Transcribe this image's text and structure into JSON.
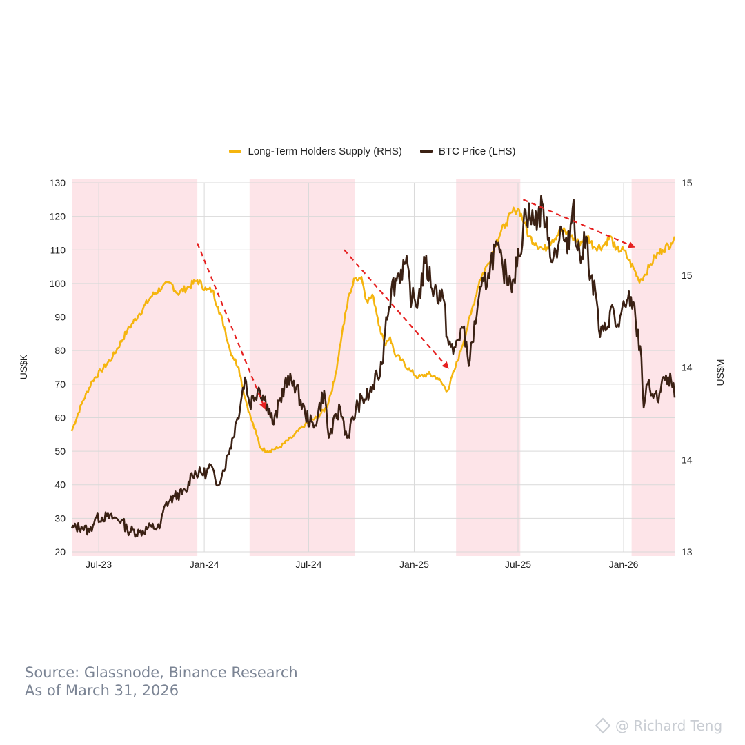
{
  "legend": {
    "lth_label": "Long-Term Holders Supply (RHS)",
    "btc_label": "BTC Price (LHS)"
  },
  "footer": {
    "source": "Source: Glassnode, Binance Research",
    "as_of": "As of March 31, 2026"
  },
  "watermark": {
    "text": "@ Richard Teng"
  },
  "colors": {
    "lth": "#f5b50f",
    "btc": "#3b2114",
    "shade": "#fde4e8",
    "arrow": "#e62020",
    "grid": "#d9d9d9"
  },
  "chart_data": {
    "type": "line",
    "x_range": [
      "2023-05-15",
      "2026-03-31"
    ],
    "x_ticks": [
      "Jul-23",
      "Jan-24",
      "Jul-24",
      "Jan-25",
      "Jul-25",
      "Jan-26"
    ],
    "x_tick_dates": [
      "2023-07-01",
      "2024-01-01",
      "2024-07-01",
      "2025-01-01",
      "2025-07-01",
      "2026-01-01"
    ],
    "ylabel_left": "US$K",
    "ylim_left": [
      20,
      130
    ],
    "yticks_left": [
      20,
      30,
      40,
      50,
      60,
      70,
      80,
      90,
      100,
      110,
      120,
      130
    ],
    "ylabel_right": "US$M",
    "ylim_right": [
      13,
      15
    ],
    "ytick_labels_right": [
      "15",
      "15",
      "14",
      "14",
      "13"
    ],
    "grid": true,
    "legend_position": "top-center",
    "shaded_periods": [
      [
        "2023-05-15",
        "2023-12-20"
      ],
      [
        "2024-03-20",
        "2024-09-20"
      ],
      [
        "2025-03-15",
        "2025-07-05"
      ],
      [
        "2026-01-15",
        "2026-03-31"
      ]
    ],
    "trend_arrows": [
      {
        "from": [
          "2023-12-20",
          112
        ],
        "to": [
          "2024-04-15",
          63
        ]
      },
      {
        "from": [
          "2024-09-01",
          110
        ],
        "to": [
          "2025-02-28",
          75
        ]
      },
      {
        "from": [
          "2025-07-10",
          125
        ],
        "to": [
          "2026-01-18",
          111
        ]
      }
    ],
    "series": [
      {
        "name": "BTC Price (LHS)",
        "axis": "left",
        "points": [
          [
            "2023-05-15",
            27
          ],
          [
            "2023-06-01",
            27.5
          ],
          [
            "2023-06-15",
            26
          ],
          [
            "2023-06-25",
            30
          ],
          [
            "2023-07-15",
            30.5
          ],
          [
            "2023-08-10",
            29.5
          ],
          [
            "2023-08-20",
            26.5
          ],
          [
            "2023-09-10",
            25.8
          ],
          [
            "2023-10-01",
            27.5
          ],
          [
            "2023-10-15",
            27
          ],
          [
            "2023-10-25",
            34
          ],
          [
            "2023-11-10",
            36.5
          ],
          [
            "2023-12-01",
            38
          ],
          [
            "2023-12-10",
            43.5
          ],
          [
            "2024-01-05",
            43.5
          ],
          [
            "2024-01-12",
            46
          ],
          [
            "2024-01-22",
            40
          ],
          [
            "2024-02-01",
            43
          ],
          [
            "2024-02-15",
            51
          ],
          [
            "2024-02-28",
            60
          ],
          [
            "2024-03-12",
            72
          ],
          [
            "2024-03-20",
            64
          ],
          [
            "2024-04-05",
            69
          ],
          [
            "2024-04-20",
            64
          ],
          [
            "2024-05-01",
            58
          ],
          [
            "2024-05-20",
            70
          ],
          [
            "2024-06-05",
            71
          ],
          [
            "2024-06-25",
            61
          ],
          [
            "2024-07-10",
            57
          ],
          [
            "2024-07-28",
            68
          ],
          [
            "2024-08-05",
            54
          ],
          [
            "2024-08-25",
            63
          ],
          [
            "2024-09-06",
            54
          ],
          [
            "2024-09-25",
            64
          ],
          [
            "2024-10-15",
            67
          ],
          [
            "2024-10-29",
            72
          ],
          [
            "2024-11-06",
            76
          ],
          [
            "2024-11-13",
            90
          ],
          [
            "2024-11-22",
            98
          ],
          [
            "2024-12-05",
            103
          ],
          [
            "2024-12-17",
            106
          ],
          [
            "2024-12-28",
            95
          ],
          [
            "2025-01-08",
            95
          ],
          [
            "2025-01-20",
            106
          ],
          [
            "2025-02-05",
            98
          ],
          [
            "2025-02-20",
            96
          ],
          [
            "2025-02-28",
            84
          ],
          [
            "2025-03-10",
            79
          ],
          [
            "2025-03-25",
            87
          ],
          [
            "2025-04-08",
            77
          ],
          [
            "2025-04-22",
            94
          ],
          [
            "2025-05-10",
            103
          ],
          [
            "2025-05-22",
            111
          ],
          [
            "2025-06-05",
            104
          ],
          [
            "2025-06-22",
            101
          ],
          [
            "2025-07-03",
            108
          ],
          [
            "2025-07-14",
            122
          ],
          [
            "2025-07-28",
            118
          ],
          [
            "2025-08-14",
            123
          ],
          [
            "2025-08-22",
            113
          ],
          [
            "2025-09-01",
            108
          ],
          [
            "2025-09-15",
            116
          ],
          [
            "2025-09-25",
            109
          ],
          [
            "2025-10-06",
            125
          ],
          [
            "2025-10-11",
            111
          ],
          [
            "2025-10-20",
            108
          ],
          [
            "2025-10-28",
            114
          ],
          [
            "2025-11-05",
            102
          ],
          [
            "2025-11-15",
            95
          ],
          [
            "2025-11-21",
            84
          ],
          [
            "2025-12-01",
            86
          ],
          [
            "2025-12-10",
            93
          ],
          [
            "2025-12-20",
            87
          ],
          [
            "2026-01-05",
            93
          ],
          [
            "2026-01-14",
            96
          ],
          [
            "2026-01-22",
            89
          ],
          [
            "2026-02-01",
            78
          ],
          [
            "2026-02-05",
            63
          ],
          [
            "2026-02-10",
            70
          ],
          [
            "2026-02-20",
            67
          ],
          [
            "2026-03-01",
            65
          ],
          [
            "2026-03-10",
            72
          ],
          [
            "2026-03-18",
            70
          ],
          [
            "2026-03-25",
            71
          ],
          [
            "2026-03-31",
            66
          ]
        ]
      },
      {
        "name": "Long-Term Holders Supply (RHS)",
        "axis": "right",
        "points": [
          [
            "2023-05-15",
            56
          ],
          [
            "2023-06-01",
            64
          ],
          [
            "2023-06-20",
            71
          ],
          [
            "2023-07-05",
            74
          ],
          [
            "2023-07-25",
            78
          ],
          [
            "2023-08-20",
            86
          ],
          [
            "2023-09-10",
            91
          ],
          [
            "2023-09-30",
            96
          ],
          [
            "2023-10-20",
            99
          ],
          [
            "2023-11-05",
            100
          ],
          [
            "2023-11-15",
            97
          ],
          [
            "2023-12-05",
            99
          ],
          [
            "2023-12-20",
            101
          ],
          [
            "2024-01-05",
            98
          ],
          [
            "2024-01-15",
            98
          ],
          [
            "2024-01-25",
            93
          ],
          [
            "2024-02-05",
            87
          ],
          [
            "2024-02-15",
            80
          ],
          [
            "2024-03-01",
            75
          ],
          [
            "2024-03-12",
            66
          ],
          [
            "2024-03-22",
            60
          ],
          [
            "2024-04-01",
            55
          ],
          [
            "2024-04-08",
            51
          ],
          [
            "2024-04-20",
            50
          ],
          [
            "2024-05-10",
            51
          ],
          [
            "2024-06-01",
            54
          ],
          [
            "2024-06-25",
            58
          ],
          [
            "2024-07-15",
            60
          ],
          [
            "2024-08-01",
            63
          ],
          [
            "2024-08-15",
            71
          ],
          [
            "2024-08-28",
            85
          ],
          [
            "2024-09-10",
            97
          ],
          [
            "2024-09-20",
            101.5
          ],
          [
            "2024-10-01",
            102
          ],
          [
            "2024-10-10",
            95
          ],
          [
            "2024-10-22",
            96
          ],
          [
            "2024-11-02",
            87
          ],
          [
            "2024-11-10",
            82
          ],
          [
            "2024-11-20",
            84
          ],
          [
            "2024-11-28",
            79
          ],
          [
            "2024-12-10",
            77
          ],
          [
            "2024-12-25",
            74
          ],
          [
            "2025-01-08",
            72
          ],
          [
            "2025-01-25",
            73
          ],
          [
            "2025-02-10",
            72
          ],
          [
            "2025-02-28",
            68
          ],
          [
            "2025-03-12",
            74
          ],
          [
            "2025-03-25",
            81
          ],
          [
            "2025-04-10",
            91
          ],
          [
            "2025-04-25",
            101
          ],
          [
            "2025-05-10",
            106
          ],
          [
            "2025-05-25",
            113
          ],
          [
            "2025-06-10",
            118
          ],
          [
            "2025-06-25",
            122
          ],
          [
            "2025-07-03",
            122
          ],
          [
            "2025-07-12",
            118
          ],
          [
            "2025-07-20",
            114
          ],
          [
            "2025-08-01",
            112
          ],
          [
            "2025-08-15",
            110
          ],
          [
            "2025-08-30",
            113
          ],
          [
            "2025-09-15",
            116
          ],
          [
            "2025-10-01",
            114
          ],
          [
            "2025-10-15",
            112
          ],
          [
            "2025-10-30",
            114
          ],
          [
            "2025-11-10",
            111
          ],
          [
            "2025-11-25",
            111
          ],
          [
            "2025-12-10",
            114
          ],
          [
            "2025-12-18",
            110
          ],
          [
            "2026-01-01",
            110
          ],
          [
            "2026-01-10",
            107
          ],
          [
            "2026-01-20",
            104
          ],
          [
            "2026-01-27",
            101
          ],
          [
            "2026-02-05",
            102
          ],
          [
            "2026-02-15",
            105
          ],
          [
            "2026-02-25",
            108
          ],
          [
            "2026-03-10",
            110
          ],
          [
            "2026-03-25",
            112
          ],
          [
            "2026-03-31",
            114
          ]
        ]
      }
    ]
  }
}
